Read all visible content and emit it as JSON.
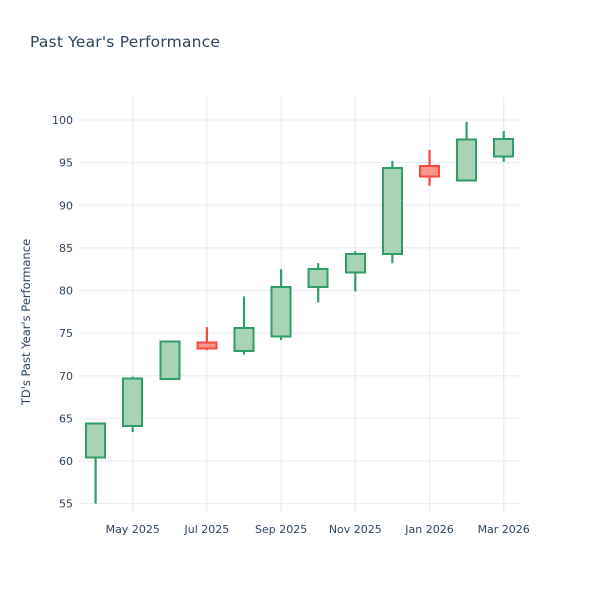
{
  "page": {
    "background_color": "#ffffff"
  },
  "header": {
    "title": "Past Year's Performance"
  },
  "chart_data": {
    "type": "candlestick",
    "title": "Past Year's Performance",
    "xlabel": "",
    "ylabel": "TD's Past Year's Performance",
    "categories": [
      "Apr 2025",
      "May 2025",
      "Jun 2025",
      "Jul 2025",
      "Aug 2025",
      "Sep 2025",
      "Oct 2025",
      "Nov 2025",
      "Dec 2025",
      "Jan 2026",
      "Feb 2026",
      "Mar 2026"
    ],
    "series": [
      {
        "name": "TD monthly OHLC",
        "ohlc": [
          {
            "month": "Apr 2025",
            "open": 60.4,
            "high": 64.4,
            "low": 55.0,
            "close": 64.4,
            "direction": "up"
          },
          {
            "month": "May 2025",
            "open": 64.1,
            "high": 69.9,
            "low": 63.4,
            "close": 69.7,
            "direction": "up"
          },
          {
            "month": "Jun 2025",
            "open": 69.6,
            "high": 74.0,
            "low": 69.5,
            "close": 74.0,
            "direction": "up"
          },
          {
            "month": "Jul 2025",
            "open": 73.9,
            "high": 75.7,
            "low": 73.0,
            "close": 73.2,
            "direction": "down"
          },
          {
            "month": "Aug 2025",
            "open": 72.9,
            "high": 79.3,
            "low": 72.5,
            "close": 75.6,
            "direction": "up"
          },
          {
            "month": "Sep 2025",
            "open": 74.6,
            "high": 82.5,
            "low": 74.2,
            "close": 80.4,
            "direction": "up"
          },
          {
            "month": "Oct 2025",
            "open": 80.4,
            "high": 83.2,
            "low": 78.6,
            "close": 82.5,
            "direction": "up"
          },
          {
            "month": "Nov 2025",
            "open": 82.1,
            "high": 84.6,
            "low": 79.9,
            "close": 84.3,
            "direction": "up"
          },
          {
            "month": "Dec 2025",
            "open": 84.3,
            "high": 95.2,
            "low": 83.2,
            "close": 94.4,
            "direction": "up"
          },
          {
            "month": "Jan 2026",
            "open": 94.6,
            "high": 96.5,
            "low": 92.3,
            "close": 93.4,
            "direction": "down"
          },
          {
            "month": "Feb 2026",
            "open": 92.9,
            "high": 99.8,
            "low": 92.9,
            "close": 97.7,
            "direction": "up"
          },
          {
            "month": "Mar 2026",
            "open": 95.7,
            "high": 98.7,
            "low": 95.1,
            "close": 97.8,
            "direction": "up"
          }
        ]
      }
    ],
    "x_tick_labels": [
      "May 2025",
      "Jul 2025",
      "Sep 2025",
      "Nov 2025",
      "Jan 2026",
      "Mar 2026"
    ],
    "x_tick_indices": [
      1,
      3,
      5,
      7,
      9,
      11
    ],
    "y_ticks": [
      55,
      60,
      65,
      70,
      75,
      80,
      85,
      90,
      95,
      100
    ],
    "ylim": [
      53.9,
      102.7
    ],
    "grid": true,
    "legend": false,
    "colors": {
      "up_stroke": "#2f9e68",
      "up_fill": "#a8d3b4",
      "down_stroke": "#f8493c",
      "down_fill": "#fa968e",
      "gridline": "#e9edf5",
      "text": "#2f4560",
      "background": "#ffffff"
    }
  }
}
